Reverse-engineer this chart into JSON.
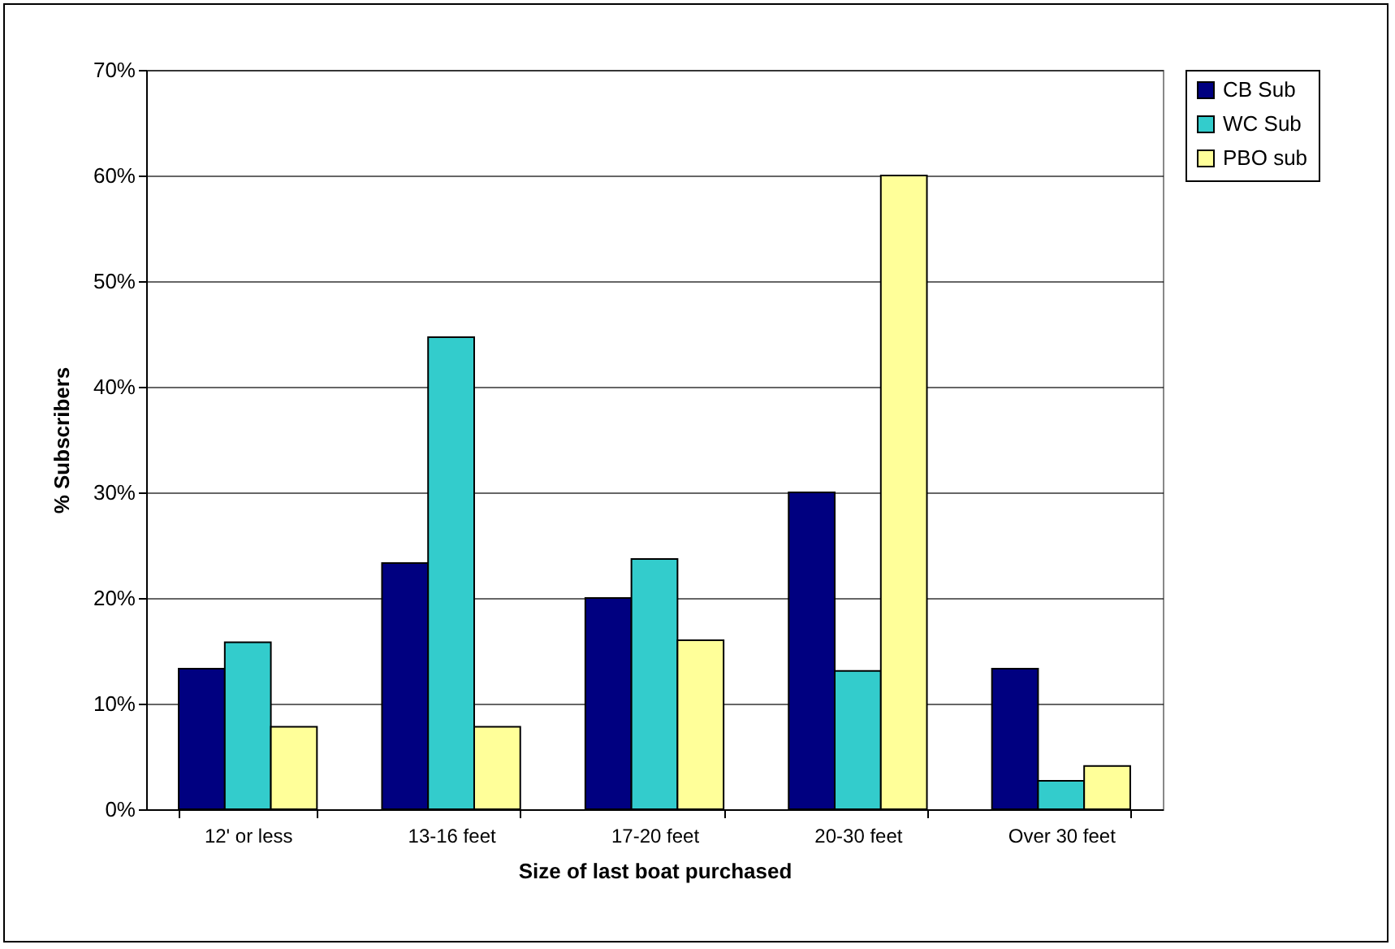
{
  "chart_data": {
    "type": "bar",
    "xlabel": "Size of last boat purchased",
    "ylabel": "% Subscribers",
    "categories": [
      "12' or less",
      "13-16 feet",
      "17-20 feet",
      "20-30 feet",
      "Over 30 feet"
    ],
    "series": [
      {
        "name": "CB Sub",
        "color": "#000080",
        "values": [
          13.3,
          23.3,
          20.0,
          30.0,
          13.3
        ]
      },
      {
        "name": "WC Sub",
        "color": "#33cccc",
        "values": [
          15.8,
          44.7,
          23.7,
          13.1,
          2.7
        ]
      },
      {
        "name": "PBO sub",
        "color": "#ffff99",
        "values": [
          7.8,
          7.8,
          16.0,
          60.0,
          4.1
        ]
      }
    ],
    "ylim": [
      0,
      70
    ],
    "yticks": [
      {
        "value": 0,
        "label": "0%"
      },
      {
        "value": 10,
        "label": "10%"
      },
      {
        "value": 20,
        "label": "20%"
      },
      {
        "value": 30,
        "label": "30%"
      },
      {
        "value": 40,
        "label": "40%"
      },
      {
        "value": 50,
        "label": "50%"
      },
      {
        "value": 60,
        "label": "60%"
      },
      {
        "value": 70,
        "label": "70%"
      }
    ],
    "grid": "y",
    "legend": "right"
  }
}
